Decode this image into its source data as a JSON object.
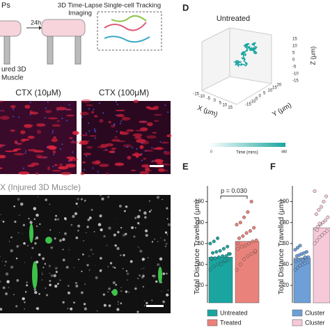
{
  "schematic": {
    "fragment": "Ps",
    "time": "24h",
    "imaging": [
      "3D Time-Lapse",
      "Imaging"
    ],
    "tracking": "Single-cell Tracking",
    "muscle": [
      "ured 3D",
      "Muscle"
    ]
  },
  "panel_d": {
    "letter": "D",
    "title": "Untreated",
    "z_label": "Z (μm)",
    "x_label": "X (μm)",
    "y_label": "Y (μm)",
    "z_ticks": [
      "15",
      "10",
      "5",
      "0",
      "-5",
      "-10",
      "-15"
    ],
    "x_ticks": [
      "-15",
      "-10",
      "-5",
      "0",
      "5",
      "10",
      "15"
    ],
    "y_ticks": [
      "-15",
      "-10",
      "-5",
      "0",
      "5",
      "10",
      "15",
      "20"
    ],
    "colorbar": {
      "min": "0",
      "label": "Time (mins)",
      "max": "480"
    }
  },
  "images": {
    "ctx_low": "CTX (10μM)",
    "ctx_high": "CTX (100μM)",
    "injured": "X (Injured 3D Muscle)"
  },
  "chart_data": [
    {
      "type": "bar",
      "letter": "E",
      "ylabel": "Total Distance Travelled (μm)",
      "annotation": "p = 0.030",
      "categories": [
        "Untreated",
        "Treated"
      ],
      "values": [
        47,
        62
      ],
      "colors": [
        "#1aa5a0",
        "#e8827a"
      ],
      "points": [
        [
          35,
          38,
          40,
          42,
          43,
          44,
          45,
          46,
          47,
          48,
          48,
          50,
          51,
          52,
          53,
          55,
          57,
          60,
          62,
          65,
          40,
          44,
          50,
          46
        ],
        [
          35,
          40,
          45,
          48,
          50,
          52,
          55,
          57,
          58,
          60,
          62,
          63,
          65,
          67,
          70,
          72,
          75,
          78,
          80,
          85,
          90,
          100,
          53,
          60
        ]
      ],
      "ylim": [
        0,
        115
      ],
      "yticks": [
        20,
        40,
        60,
        80,
        100
      ]
    },
    {
      "type": "bar",
      "letter": "F",
      "ylabel": "Total Distance Travelled (μm)",
      "categories": [
        "Cluster",
        "Cluster"
      ],
      "values": [
        46,
        75
      ],
      "colors": [
        "#6e9fd6",
        "#f6c9d9"
      ],
      "points": [
        [
          35,
          37,
          39,
          40,
          41,
          42,
          43,
          44,
          45,
          45,
          46,
          47,
          48,
          49,
          50,
          51,
          52,
          54,
          56,
          58,
          44,
          47
        ],
        [
          60,
          63,
          66,
          68,
          70,
          72,
          74,
          76,
          78,
          80,
          82,
          85,
          88,
          92,
          95,
          100,
          105,
          110,
          73,
          79
        ]
      ],
      "ylim": [
        0,
        115
      ],
      "yticks": [
        20,
        40,
        60,
        80,
        100
      ]
    }
  ]
}
